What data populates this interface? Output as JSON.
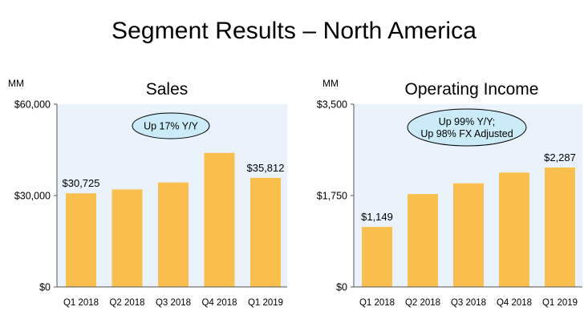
{
  "slide": {
    "title": "Segment Results – North America"
  },
  "colors": {
    "bar": "#FBBF4E",
    "plot_bg": "#EAF2FB",
    "callout_fill": "#CCEBF8",
    "axis": "#555555"
  },
  "chart_data": [
    {
      "type": "bar",
      "title": "Sales",
      "unit_label": "MM",
      "categories": [
        "Q1 2018",
        "Q2 2018",
        "Q3 2018",
        "Q4 2018",
        "Q1 2019"
      ],
      "values": [
        30725,
        32000,
        34300,
        44000,
        35812
      ],
      "data_labels": [
        "$30,725",
        "",
        "",
        "",
        "$35,812"
      ],
      "ylim": [
        0,
        60000
      ],
      "yticks": [
        {
          "value": 0,
          "label": "$0"
        },
        {
          "value": 30000,
          "label": "$30,000"
        },
        {
          "value": 60000,
          "label": "$60,000"
        }
      ],
      "callout": [
        "Up 17% Y/Y"
      ]
    },
    {
      "type": "bar",
      "title": "Operating Income",
      "unit_label": "MM",
      "categories": [
        "Q1 2018",
        "Q2 2018",
        "Q3 2018",
        "Q4 2018",
        "Q1 2019"
      ],
      "values": [
        1149,
        1780,
        1985,
        2190,
        2287
      ],
      "data_labels": [
        "$1,149",
        "",
        "",
        "",
        "$2,287"
      ],
      "ylim": [
        0,
        3500
      ],
      "yticks": [
        {
          "value": 0,
          "label": "$0"
        },
        {
          "value": 1750,
          "label": "$1,750"
        },
        {
          "value": 3500,
          "label": "$3,500"
        }
      ],
      "callout": [
        "Up 99% Y/Y;",
        "Up 98% FX Adjusted"
      ]
    }
  ]
}
